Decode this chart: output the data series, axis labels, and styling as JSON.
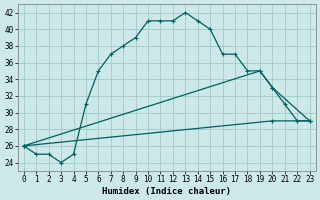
{
  "title": "",
  "xlabel": "Humidex (Indice chaleur)",
  "ylabel": "",
  "background_color": "#cce8e8",
  "grid_color": "#a0c8c8",
  "line_color": "#006060",
  "ylim": [
    23,
    43
  ],
  "yticks": [
    24,
    26,
    28,
    30,
    32,
    34,
    36,
    38,
    40,
    42
  ],
  "xlim": [
    -0.5,
    23.5
  ],
  "xticks": [
    0,
    1,
    2,
    3,
    4,
    5,
    6,
    7,
    8,
    9,
    10,
    11,
    12,
    13,
    14,
    15,
    16,
    17,
    18,
    19,
    20,
    21,
    22,
    23
  ],
  "curve1_x": [
    0,
    1,
    2,
    3,
    4,
    5,
    6,
    7,
    8,
    9,
    10,
    11,
    12,
    13,
    14,
    15,
    16,
    17,
    18,
    19,
    20,
    21,
    22,
    23
  ],
  "curve1_y": [
    26,
    25,
    25,
    24,
    25,
    31,
    35,
    37,
    38,
    39,
    41,
    41,
    41,
    42,
    41,
    40,
    37,
    37,
    35,
    35,
    33,
    31,
    29,
    29
  ],
  "curve2_x": [
    0,
    19,
    20,
    23
  ],
  "curve2_y": [
    26,
    35,
    33,
    29
  ],
  "curve3_x": [
    0,
    20,
    23
  ],
  "curve3_y": [
    26,
    29,
    29
  ],
  "tick_fontsize": 5.5,
  "xlabel_fontsize": 6.5
}
